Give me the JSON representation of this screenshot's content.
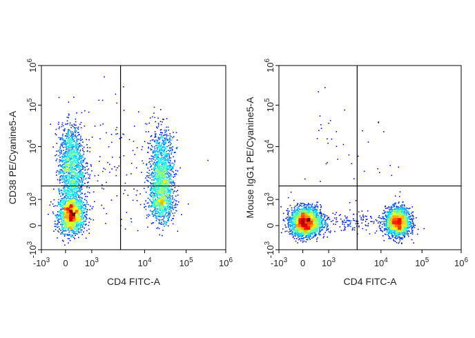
{
  "chart_data": [
    {
      "type": "scatter",
      "subtype": "flow-cytometry-density-dot-plot",
      "xlabel": "CD4 FITC-A",
      "ylabel": "CD38 PE/Cyanine5-A",
      "x_ticks": [
        {
          "base": "-10",
          "exp": "3",
          "value": -1000
        },
        {
          "base": "0",
          "exp": "",
          "value": 0
        },
        {
          "base": "10",
          "exp": "3",
          "value": 1000
        },
        {
          "base": "10",
          "exp": "4",
          "value": 10000
        },
        {
          "base": "10",
          "exp": "5",
          "value": 100000
        },
        {
          "base": "10",
          "exp": "6",
          "value": 1000000
        }
      ],
      "y_ticks": [
        {
          "base": "-10",
          "exp": "3",
          "value": -1000
        },
        {
          "base": "0",
          "exp": "",
          "value": 0
        },
        {
          "base": "10",
          "exp": "3",
          "value": 1000
        },
        {
          "base": "10",
          "exp": "4",
          "value": 10000
        },
        {
          "base": "10",
          "exp": "5",
          "value": 100000
        },
        {
          "base": "10",
          "exp": "6",
          "value": 1000000
        }
      ],
      "scale": "biexponential",
      "xlim": [
        -1000,
        1000000
      ],
      "ylim": [
        -1000,
        1000000
      ],
      "quadrant_gate": {
        "x": 3500,
        "y": 1800
      },
      "populations": [
        {
          "x": 200,
          "y": 400,
          "spread_x_decades": 0.25,
          "spread_y_decades": 0.35,
          "events": 1500
        },
        {
          "x": 200,
          "y": 4000,
          "spread_x_decades": 0.25,
          "spread_y_decades": 0.45,
          "events": 1400
        },
        {
          "x": 25000,
          "y": 2000,
          "spread_x_decades": 0.15,
          "spread_y_decades": 0.5,
          "events": 1800
        },
        {
          "x": 2500,
          "y": 3000,
          "spread_x_decades": 0.6,
          "spread_y_decades": 0.8,
          "events": 160
        }
      ]
    },
    {
      "type": "scatter",
      "subtype": "flow-cytometry-density-dot-plot",
      "xlabel": "CD4 FITC-A",
      "ylabel": "Mouse IgG1 PE/Cyanine5-A",
      "x_ticks": [
        {
          "base": "-10",
          "exp": "3",
          "value": -1000
        },
        {
          "base": "0",
          "exp": "",
          "value": 0
        },
        {
          "base": "10",
          "exp": "3",
          "value": 1000
        },
        {
          "base": "10",
          "exp": "4",
          "value": 10000
        },
        {
          "base": "10",
          "exp": "5",
          "value": 100000
        },
        {
          "base": "10",
          "exp": "6",
          "value": 1000000
        }
      ],
      "y_ticks": [
        {
          "base": "-10",
          "exp": "3",
          "value": -1000
        },
        {
          "base": "0",
          "exp": "",
          "value": 0
        },
        {
          "base": "10",
          "exp": "3",
          "value": 1000
        },
        {
          "base": "10",
          "exp": "4",
          "value": 10000
        },
        {
          "base": "10",
          "exp": "5",
          "value": 100000
        },
        {
          "base": "10",
          "exp": "6",
          "value": 1000000
        }
      ],
      "scale": "biexponential",
      "xlim": [
        -1000,
        1000000
      ],
      "ylim": [
        -1000,
        1000000
      ],
      "quadrant_gate": {
        "x": 3500,
        "y": 1800
      },
      "populations": [
        {
          "x": 80,
          "y": 150,
          "spread_x_decades": 0.3,
          "spread_y_decades": 0.28,
          "events": 2500
        },
        {
          "x": 25000,
          "y": 150,
          "spread_x_decades": 0.15,
          "spread_y_decades": 0.28,
          "events": 1800
        },
        {
          "x": 2000,
          "y": 150,
          "spread_x_decades": 0.6,
          "spread_y_decades": 0.2,
          "events": 200
        },
        {
          "x": 1500,
          "y": 6000,
          "spread_x_decades": 0.6,
          "spread_y_decades": 0.6,
          "events": 40
        }
      ]
    }
  ]
}
